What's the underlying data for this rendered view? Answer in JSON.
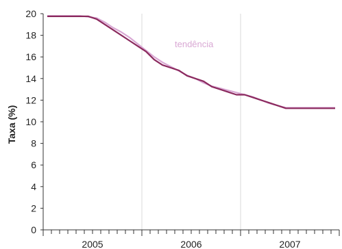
{
  "chart_data": {
    "type": "line",
    "ylabel": "Taxa (%)",
    "xlabel": "",
    "ylim": [
      0,
      20
    ],
    "yticks": [
      0,
      2,
      4,
      6,
      8,
      10,
      12,
      14,
      16,
      18,
      20
    ],
    "x_group_labels": [
      "2005",
      "2006",
      "2007"
    ],
    "x_start": "2005-01",
    "x_end": "2007-12",
    "vertical_grid": true,
    "horizontal_grid": false,
    "annotation": "tendência",
    "colors": {
      "observed": "#8b2a5e",
      "trend": "#d9a8d4",
      "grid": "#d8d8d8",
      "axis": "#333333"
    },
    "series": [
      {
        "x": [
          "2005-01",
          "2005-02",
          "2005-03",
          "2005-04",
          "2005-05",
          "2005-06",
          "2005-07",
          "2005-08",
          "2005-09",
          "2005-10",
          "2005-11",
          "2005-12",
          "2006-01",
          "2006-02",
          "2006-03",
          "2006-04",
          "2006-05",
          "2006-06",
          "2006-07",
          "2006-08",
          "2006-09",
          "2006-10",
          "2006-11",
          "2006-12",
          "2007-01",
          "2007-02",
          "2007-03",
          "2007-04",
          "2007-05",
          "2007-06",
          "2007-07",
          "2007-08",
          "2007-09",
          "2007-10",
          "2007-11",
          "2007-12"
        ],
        "values": [
          19.75,
          19.75,
          19.75,
          19.75,
          19.75,
          19.75,
          19.5,
          19.0,
          18.5,
          18.0,
          17.5,
          17.0,
          16.5,
          15.75,
          15.25,
          15.0,
          14.75,
          14.25,
          14.0,
          13.75,
          13.25,
          13.0,
          12.75,
          12.5,
          12.5,
          12.25,
          12.0,
          11.75,
          11.5,
          11.25,
          11.25,
          11.25,
          11.25,
          11.25,
          11.25,
          11.25
        ]
      },
      {
        "x": [
          "2005-01",
          "2005-02",
          "2005-03",
          "2005-04",
          "2005-05",
          "2005-06",
          "2005-07",
          "2005-08",
          "2005-09",
          "2005-10",
          "2005-11",
          "2005-12",
          "2006-01",
          "2006-02",
          "2006-03",
          "2006-04",
          "2006-05",
          "2006-06",
          "2006-07",
          "2006-08",
          "2006-09",
          "2006-10",
          "2006-11",
          "2006-12",
          "2007-01",
          "2007-02",
          "2007-03",
          "2007-04",
          "2007-05",
          "2007-06",
          "2007-07",
          "2007-08",
          "2007-09",
          "2007-10",
          "2007-11",
          "2007-12"
        ],
        "values": [
          19.8,
          19.8,
          19.8,
          19.8,
          19.8,
          19.7,
          19.6,
          19.2,
          18.7,
          18.3,
          17.8,
          17.2,
          16.6,
          16.0,
          15.5,
          15.1,
          14.7,
          14.3,
          14.0,
          13.6,
          13.3,
          13.1,
          12.9,
          12.7,
          12.5,
          12.3,
          12.0,
          11.7,
          11.5,
          11.3,
          11.3,
          11.3,
          11.3,
          11.3,
          11.3,
          11.3
        ]
      }
    ]
  }
}
